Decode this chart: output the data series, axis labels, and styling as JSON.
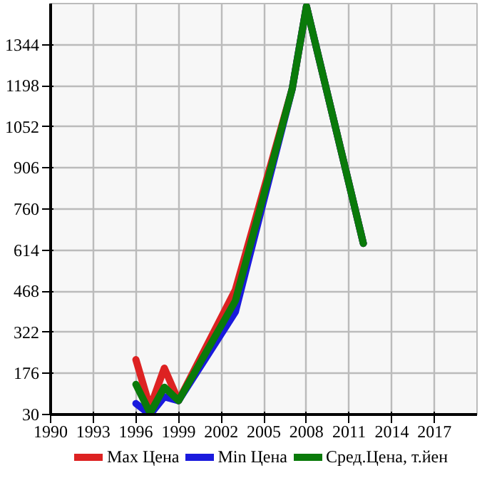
{
  "chart_data": {
    "type": "line",
    "x": [
      1996,
      1997,
      1998,
      1999,
      2003,
      2007,
      2008,
      2012
    ],
    "series": [
      {
        "name": "Max Цена",
        "color": "#dd2222",
        "values": [
          225,
          54,
          195,
          79,
          473,
          1188,
          1480,
          638
        ]
      },
      {
        "name": "Min Цена",
        "color": "#1a1add",
        "values": [
          69,
          30,
          93,
          79,
          395,
          1188,
          1480,
          638
        ]
      },
      {
        "name": "Сред.Цена, т.йен",
        "color": "#0a7a0a",
        "values": [
          137,
          35,
          127,
          79,
          434,
          1188,
          1480,
          638
        ]
      }
    ],
    "xlim": [
      1990,
      2020
    ],
    "ylim": [
      30,
      1490
    ],
    "xticks": [
      1990,
      1993,
      1996,
      1999,
      2002,
      2005,
      2008,
      2011,
      2014,
      2017
    ],
    "yticks": [
      30,
      176,
      322,
      468,
      614,
      760,
      906,
      1052,
      1198,
      1344
    ],
    "grid": true,
    "legend": "bottom",
    "marker": "none",
    "line_style": "solid"
  }
}
